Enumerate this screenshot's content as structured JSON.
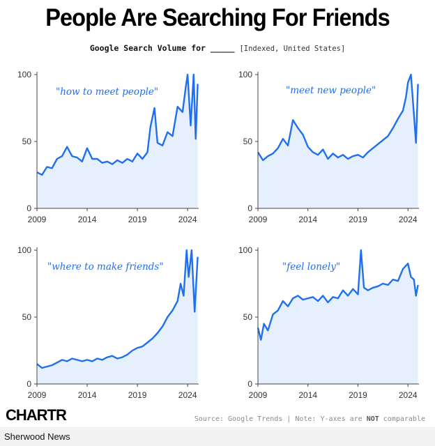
{
  "title": "People Are Searching For Friends",
  "subtitle": {
    "lead": "Google Search Volume for _____",
    "qualifier": "[Indexed, United States]"
  },
  "source": {
    "text": "Source: Google Trends | Note: Y-axes are ",
    "emphasis": "NOT",
    "tail": " comparable"
  },
  "logo": "CHARTR",
  "publisher": "Sherwood News",
  "colors": {
    "line": "#1f6ff0",
    "fill": "#e6f0fd",
    "axis": "#444444"
  },
  "chart_data": [
    {
      "type": "area",
      "annotation": "\"how to meet people\"",
      "x_ticks": [
        "2009",
        "2014",
        "2019",
        "2024"
      ],
      "y_ticks": [
        0,
        50,
        100
      ],
      "xlim": [
        2009,
        2025.1
      ],
      "ylim": [
        0,
        100
      ],
      "x": [
        2009.0,
        2009.5,
        2010.0,
        2010.5,
        2011.0,
        2011.5,
        2012.0,
        2012.5,
        2013.0,
        2013.5,
        2014.0,
        2014.5,
        2015.0,
        2015.5,
        2016.0,
        2016.5,
        2017.0,
        2017.5,
        2018.0,
        2018.5,
        2019.0,
        2019.5,
        2020.0,
        2020.3,
        2020.7,
        2021.0,
        2021.5,
        2022.0,
        2022.5,
        2023.0,
        2023.5,
        2023.8,
        2024.0,
        2024.3,
        2024.6,
        2024.8,
        2025.0
      ],
      "y": [
        27,
        25,
        31,
        30,
        37,
        39,
        46,
        39,
        38,
        35,
        45,
        37,
        37,
        34,
        35,
        33,
        36,
        34,
        37,
        35,
        41,
        37,
        42,
        61,
        75,
        49,
        47,
        57,
        54,
        76,
        72,
        90,
        100,
        62,
        100,
        52,
        93
      ]
    },
    {
      "type": "area",
      "annotation": "\"meet new people\"",
      "x_ticks": [
        "2009",
        "2014",
        "2019",
        "2024"
      ],
      "y_ticks": [
        0,
        50,
        100
      ],
      "xlim": [
        2009,
        2025.1
      ],
      "ylim": [
        0,
        100
      ],
      "x": [
        2009.0,
        2009.5,
        2010.0,
        2010.5,
        2011.0,
        2011.5,
        2012.0,
        2012.5,
        2013.0,
        2013.5,
        2014.0,
        2014.5,
        2015.0,
        2015.5,
        2016.0,
        2016.5,
        2017.0,
        2017.5,
        2018.0,
        2018.5,
        2019.0,
        2019.5,
        2020.0,
        2020.5,
        2021.0,
        2021.5,
        2022.0,
        2022.5,
        2023.0,
        2023.5,
        2023.8,
        2024.0,
        2024.3,
        2024.6,
        2024.8,
        2025.0
      ],
      "y": [
        42,
        36,
        39,
        41,
        45,
        52,
        47,
        66,
        60,
        55,
        46,
        42,
        40,
        44,
        37,
        41,
        38,
        40,
        37,
        39,
        40,
        38,
        42,
        45,
        48,
        51,
        54,
        60,
        67,
        73,
        83,
        94,
        100,
        70,
        49,
        93
      ]
    },
    {
      "type": "area",
      "annotation": "\"where to make friends\"",
      "x_ticks": [
        "2009",
        "2014",
        "2019",
        "2024"
      ],
      "y_ticks": [
        0,
        50,
        100
      ],
      "xlim": [
        2009,
        2025.1
      ],
      "ylim": [
        0,
        100
      ],
      "x": [
        2009.0,
        2009.5,
        2010.0,
        2010.5,
        2011.0,
        2011.5,
        2012.0,
        2012.5,
        2013.0,
        2013.5,
        2014.0,
        2014.5,
        2015.0,
        2015.5,
        2016.0,
        2016.5,
        2017.0,
        2017.5,
        2018.0,
        2018.5,
        2019.0,
        2019.5,
        2020.0,
        2020.5,
        2021.0,
        2021.5,
        2022.0,
        2022.5,
        2023.0,
        2023.3,
        2023.6,
        2023.9,
        2024.1,
        2024.4,
        2024.7,
        2025.0
      ],
      "y": [
        15,
        12,
        13,
        14,
        16,
        18,
        17,
        19,
        18,
        17,
        18,
        17,
        19,
        18,
        20,
        21,
        19,
        20,
        22,
        25,
        27,
        28,
        31,
        34,
        38,
        43,
        50,
        55,
        62,
        75,
        66,
        100,
        80,
        100,
        54,
        95
      ]
    },
    {
      "type": "area",
      "annotation": "\"feel lonely\"",
      "x_ticks": [
        "2009",
        "2014",
        "2019",
        "2024"
      ],
      "y_ticks": [
        0,
        50,
        100
      ],
      "xlim": [
        2009,
        2025.1
      ],
      "ylim": [
        0,
        100
      ],
      "x": [
        2009.0,
        2009.3,
        2009.6,
        2010.0,
        2010.5,
        2011.0,
        2011.5,
        2012.0,
        2012.5,
        2013.0,
        2013.5,
        2014.0,
        2014.5,
        2015.0,
        2015.5,
        2016.0,
        2016.5,
        2017.0,
        2017.5,
        2018.0,
        2018.5,
        2019.0,
        2019.3,
        2019.6,
        2020.0,
        2020.5,
        2021.0,
        2021.5,
        2022.0,
        2022.5,
        2023.0,
        2023.5,
        2024.0,
        2024.3,
        2024.6,
        2024.8,
        2025.0
      ],
      "y": [
        42,
        33,
        45,
        40,
        52,
        55,
        62,
        58,
        64,
        66,
        63,
        64,
        65,
        62,
        66,
        61,
        65,
        64,
        70,
        66,
        71,
        67,
        100,
        72,
        70,
        72,
        73,
        75,
        74,
        78,
        77,
        86,
        90,
        80,
        78,
        66,
        74
      ]
    }
  ]
}
